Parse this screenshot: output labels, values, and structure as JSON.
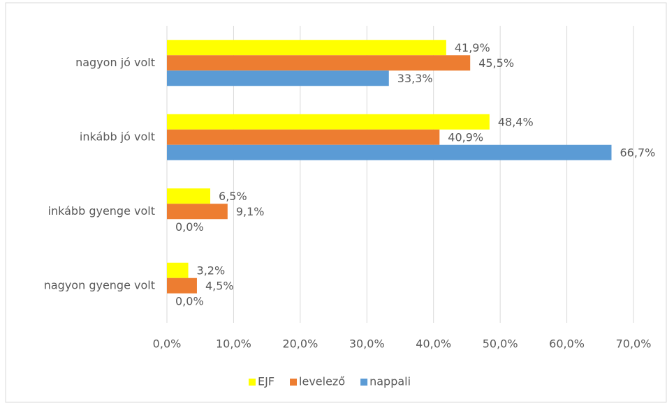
{
  "chart_data": {
    "type": "barh",
    "categories": [
      "nagyon jó volt",
      "inkább jó volt",
      "inkább gyenge volt",
      "nagyon gyenge volt"
    ],
    "series": [
      {
        "name": "EJF",
        "color": "#ffff00",
        "values": [
          41.9,
          48.4,
          6.5,
          3.2
        ],
        "value_labels": [
          "41,9%",
          "48,4%",
          "6,5%",
          "3,2%"
        ]
      },
      {
        "name": "levelező",
        "color": "#ed7d31",
        "values": [
          45.5,
          40.9,
          9.1,
          4.5
        ],
        "value_labels": [
          "45,5%",
          "40,9%",
          "9,1%",
          "4,5%"
        ]
      },
      {
        "name": "nappali",
        "color": "#5b9bd5",
        "values": [
          33.3,
          66.7,
          0.0,
          0.0
        ],
        "value_labels": [
          "33,3%",
          "66,7%",
          "0,0%",
          "0,0%"
        ]
      }
    ],
    "xlim": [
      0,
      70
    ],
    "xticks": [
      {
        "value": 0,
        "label": "0,0%"
      },
      {
        "value": 10,
        "label": "10,0%"
      },
      {
        "value": 20,
        "label": "20,0%"
      },
      {
        "value": 30,
        "label": "30,0%"
      },
      {
        "value": 40,
        "label": "40,0%"
      },
      {
        "value": 50,
        "label": "50,0%"
      },
      {
        "value": 60,
        "label": "60,0%"
      },
      {
        "value": 70,
        "label": "70,0%"
      }
    ],
    "grid": true,
    "legend": "bottom"
  }
}
